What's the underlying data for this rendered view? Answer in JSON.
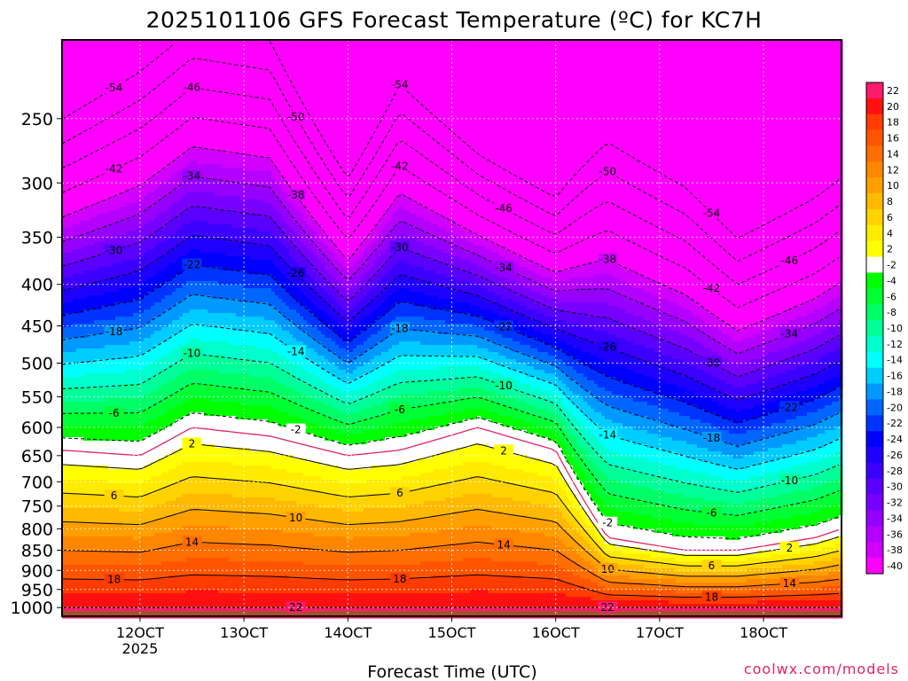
{
  "chart_data": {
    "type": "heatmap",
    "title": "2025101106 GFS Forecast Temperature (ºC) for KC7H",
    "xlabel": "Forecast Time (UTC)",
    "ylabel": "",
    "x_ticks": [
      "12OCT",
      "13OCT",
      "14OCT",
      "15OCT",
      "16OCT",
      "17OCT",
      "18OCT"
    ],
    "x_ticks_sublabel": {
      "12OCT": "2025"
    },
    "xlim": [
      "11OCT06",
      "18OCT18"
    ],
    "y_ticks": [
      250,
      300,
      350,
      400,
      450,
      500,
      550,
      600,
      650,
      700,
      750,
      800,
      850,
      900,
      950,
      1000
    ],
    "ylim": [
      200,
      1025
    ],
    "y_scale": "log-pressure (reversed)",
    "grid": true,
    "colorbar": {
      "levels": [
        22,
        20,
        18,
        16,
        14,
        12,
        10,
        8,
        6,
        4,
        2,
        -2,
        -4,
        -6,
        -8,
        -10,
        -12,
        -14,
        -16,
        -18,
        -20,
        -22,
        -24,
        -26,
        -28,
        -30,
        -32,
        -34,
        -36,
        -38,
        -40
      ],
      "colors": [
        "#ff1a6e",
        "#ff1010",
        "#ff3c00",
        "#ff5500",
        "#ff6e00",
        "#ff8700",
        "#ffa000",
        "#ffb900",
        "#ffd200",
        "#ffeb00",
        "#ffff00",
        "#ffffff",
        "#00ff00",
        "#00ff33",
        "#00ff66",
        "#00ff99",
        "#00ffcc",
        "#00ffff",
        "#00ccff",
        "#0099ff",
        "#0066ff",
        "#0033ff",
        "#0000ff",
        "#1e00ff",
        "#3c00ff",
        "#5a00ff",
        "#7800ff",
        "#9600ff",
        "#b400ff",
        "#d200ff",
        "#ff00ff"
      ]
    },
    "contour_labels": [
      -54,
      -50,
      -46,
      -42,
      -38,
      -34,
      -30,
      -26,
      -22,
      -18,
      -14,
      -10,
      -6,
      -2,
      2,
      6,
      10,
      14,
      18,
      22
    ],
    "approx_profile": {
      "times": [
        "11OCT06",
        "12OCT00",
        "12OCT12",
        "13OCT06",
        "14OCT00",
        "14OCT12",
        "15OCT06",
        "16OCT00",
        "16OCT12",
        "17OCT06",
        "17OCT18",
        "18OCT12",
        "18OCT18"
      ],
      "freezing_level_hPa": [
        640,
        650,
        600,
        615,
        650,
        640,
        600,
        640,
        820,
        850,
        850,
        820,
        800
      ],
      "minus30_level_hPa": [
        380,
        355,
        320,
        330,
        420,
        360,
        390,
        430,
        440,
        480,
        520,
        480,
        460
      ]
    }
  },
  "credit": "coolwx.com/models"
}
